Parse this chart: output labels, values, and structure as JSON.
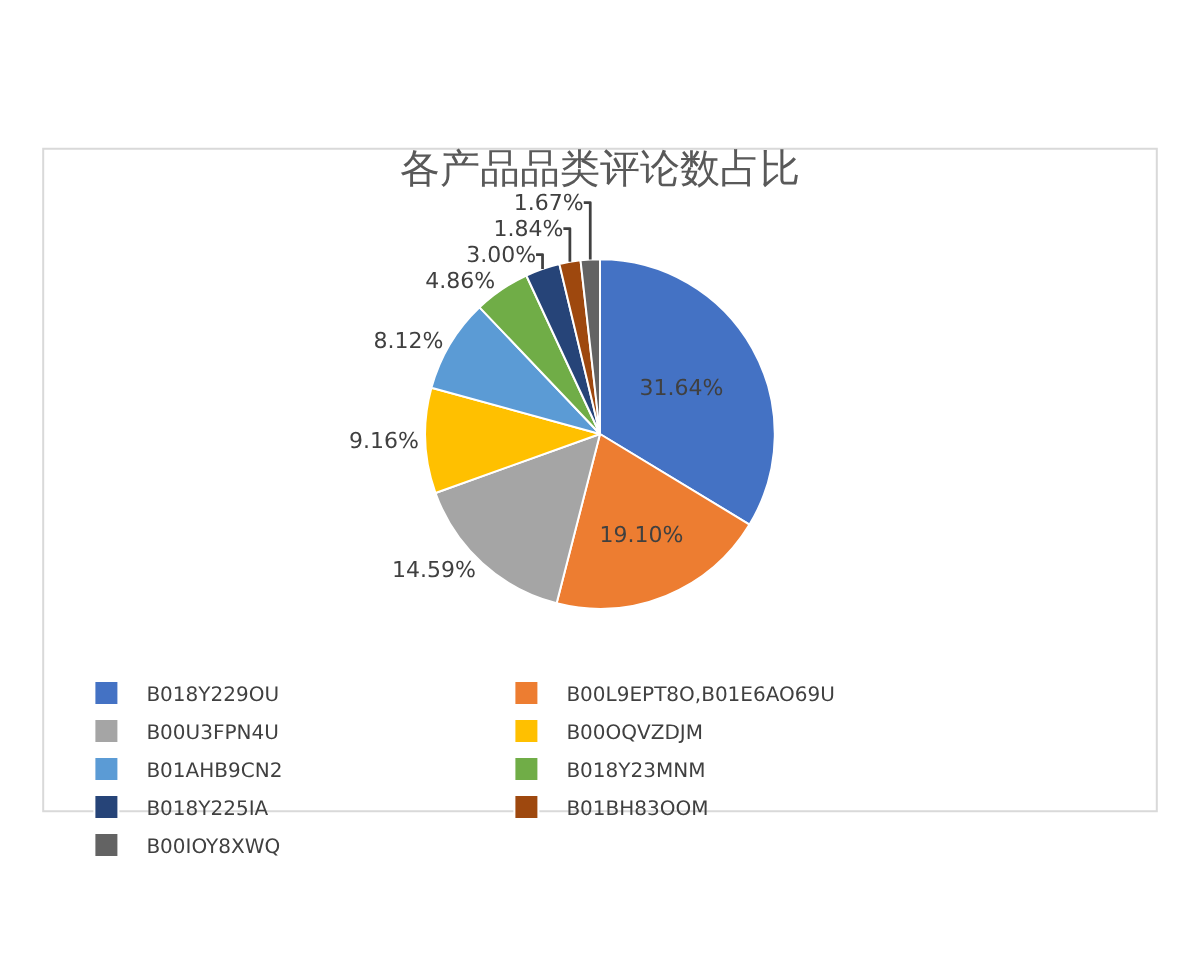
{
  "chart_data": {
    "type": "pie",
    "title": "各产品品类评论数占比",
    "categories": [
      "B018Y229OU",
      "B00L9EPT8O,B01E6AO69U",
      "B00U3FPN4U",
      "B00OQVZDJM",
      "B01AHB9CN2",
      "B018Y23MNM",
      "B018Y225IA",
      "B01BH83OOM",
      "B00IOY8XWQ"
    ],
    "values": [
      31.64,
      19.1,
      14.59,
      9.16,
      8.12,
      4.86,
      3.0,
      1.84,
      1.67
    ],
    "value_labels": [
      "31.64%",
      "19.10%",
      "14.59%",
      "9.16%",
      "8.12%",
      "4.86%",
      "3.00%",
      "1.84%",
      "1.67%"
    ],
    "colors": [
      "#4472c4",
      "#ed7d31",
      "#a5a5a5",
      "#ffc000",
      "#5b9bd5",
      "#70ad47",
      "#264478",
      "#9e480e",
      "#636363"
    ],
    "legend": "bottom"
  }
}
